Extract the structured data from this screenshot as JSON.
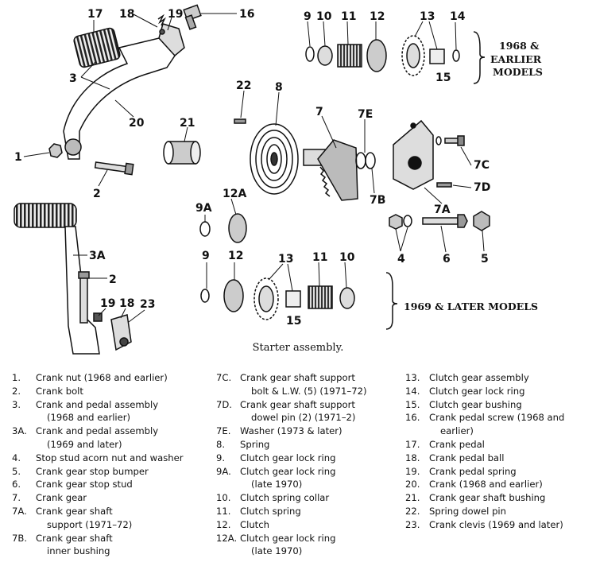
{
  "caption": "Starter assembly.",
  "group_labels": {
    "early_line1": "1968 &",
    "early_line2": "EARLIER",
    "early_line3": "MODELS",
    "late": "1969 & LATER MODELS"
  },
  "callouts": {
    "c1": "1",
    "c2a": "2",
    "c2b": "2",
    "c3": "3",
    "c3a": "3A",
    "c4": "4",
    "c5": "5",
    "c6": "6",
    "c7": "7",
    "c7a": "7A",
    "c7b": "7B",
    "c7c": "7C",
    "c7d": "7D",
    "c7e": "7E",
    "c8": "8",
    "c9a": "9",
    "c9b": "9",
    "c9A": "9A",
    "c10a": "10",
    "c10b": "10",
    "c11a": "11",
    "c11b": "11",
    "c12a": "12",
    "c12b": "12",
    "c12A": "12A",
    "c13a": "13",
    "c13b": "13",
    "c14": "14",
    "c15a": "15",
    "c15b": "15",
    "c16": "16",
    "c17": "17",
    "c18a": "18",
    "c18b": "18",
    "c19a": "19",
    "c19b": "19",
    "c20": "20",
    "c21": "21",
    "c22": "22",
    "c23": "23"
  },
  "legend": {
    "col1": [
      {
        "num": "1.",
        "lines": [
          "Crank nut (1968 and earlier)"
        ]
      },
      {
        "num": "2.",
        "lines": [
          "Crank bolt"
        ]
      },
      {
        "num": "3.",
        "lines": [
          "Crank and pedal assembly",
          "(1968 and earlier)"
        ]
      },
      {
        "num": "3A.",
        "lines": [
          "Crank and pedal assembly",
          "(1969 and later)"
        ]
      },
      {
        "num": "4.",
        "lines": [
          "Stop stud acorn nut and washer"
        ]
      },
      {
        "num": "5.",
        "lines": [
          "Crank gear stop bumper"
        ]
      },
      {
        "num": "6.",
        "lines": [
          "Crank gear stop stud"
        ]
      },
      {
        "num": "7.",
        "lines": [
          "Crank gear"
        ]
      },
      {
        "num": "7A.",
        "lines": [
          "Crank gear shaft",
          "support (1971–72)"
        ]
      },
      {
        "num": "7B.",
        "lines": [
          "Crank gear shaft",
          "inner bushing"
        ]
      }
    ],
    "col2": [
      {
        "num": "7C.",
        "lines": [
          "Crank gear shaft support",
          "bolt & L.W. (5) (1971–72)"
        ]
      },
      {
        "num": "7D.",
        "lines": [
          "Crank gear shaft support",
          "dowel pin (2) (1971–2)"
        ]
      },
      {
        "num": "7E.",
        "lines": [
          "Washer (1973 & later)"
        ]
      },
      {
        "num": "8.",
        "lines": [
          "Spring"
        ]
      },
      {
        "num": "9.",
        "lines": [
          "Clutch gear lock ring"
        ]
      },
      {
        "num": "9A.",
        "lines": [
          "Clutch gear lock ring",
          "(late 1970)"
        ]
      },
      {
        "num": "10.",
        "lines": [
          "Clutch spring collar"
        ]
      },
      {
        "num": "11.",
        "lines": [
          "Clutch spring"
        ]
      },
      {
        "num": "12.",
        "lines": [
          "Clutch"
        ]
      },
      {
        "num": "12A.",
        "lines": [
          "Clutch gear lock ring",
          "(late 1970)"
        ]
      }
    ],
    "col3": [
      {
        "num": "13.",
        "lines": [
          "Clutch gear assembly"
        ]
      },
      {
        "num": "14.",
        "lines": [
          "Clutch gear lock ring"
        ]
      },
      {
        "num": "15.",
        "lines": [
          "Clutch gear bushing"
        ]
      },
      {
        "num": "16.",
        "lines": [
          "Crank pedal screw (1968 and",
          "earlier)"
        ]
      },
      {
        "num": "17.",
        "lines": [
          "Crank pedal"
        ]
      },
      {
        "num": "18.",
        "lines": [
          "Crank pedal ball"
        ]
      },
      {
        "num": "19.",
        "lines": [
          "Crank pedal spring"
        ]
      },
      {
        "num": "20.",
        "lines": [
          "Crank (1968 and earlier)"
        ]
      },
      {
        "num": "21.",
        "lines": [
          "Crank gear shaft bushing"
        ]
      },
      {
        "num": "22.",
        "lines": [
          "Spring dowel pin"
        ]
      },
      {
        "num": "23.",
        "lines": [
          "Crank clevis (1969 and later)"
        ]
      }
    ]
  }
}
